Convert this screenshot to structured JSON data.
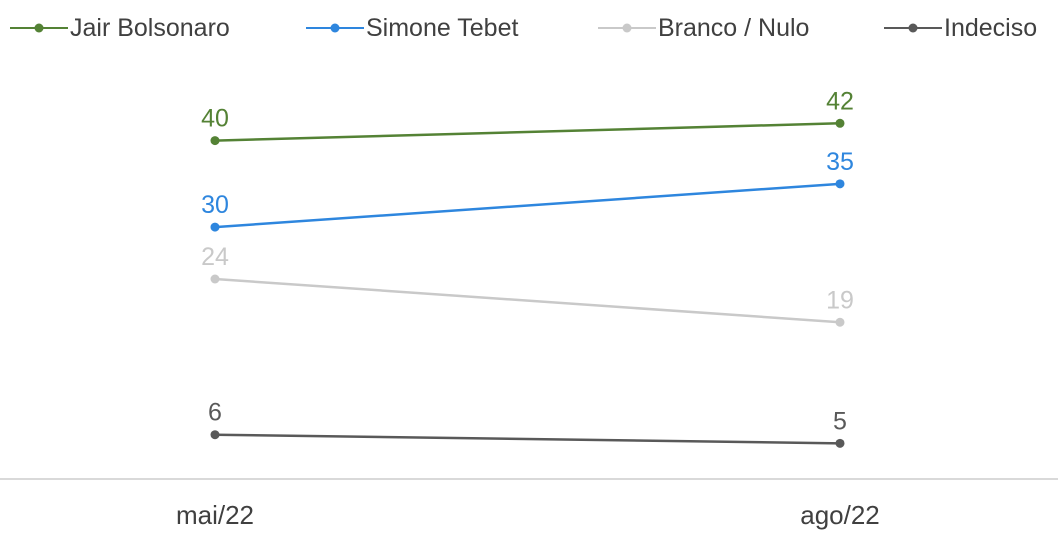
{
  "chart_data": {
    "type": "line",
    "categories": [
      "mai/22",
      "ago/22"
    ],
    "series": [
      {
        "name": "Jair Bolsonaro",
        "values": [
          40,
          42
        ],
        "color": "#548235"
      },
      {
        "name": "Simone Tebet",
        "values": [
          30,
          35
        ],
        "color": "#2e86de"
      },
      {
        "name": "Branco / Nulo",
        "values": [
          24,
          19
        ],
        "color": "#c9c9c9"
      },
      {
        "name": "Indeciso",
        "values": [
          6,
          5
        ],
        "color": "#595959"
      }
    ],
    "title": "",
    "xlabel": "",
    "ylabel": "",
    "ylim": [
      0,
      45
    ],
    "grid": false,
    "legend": "top"
  }
}
